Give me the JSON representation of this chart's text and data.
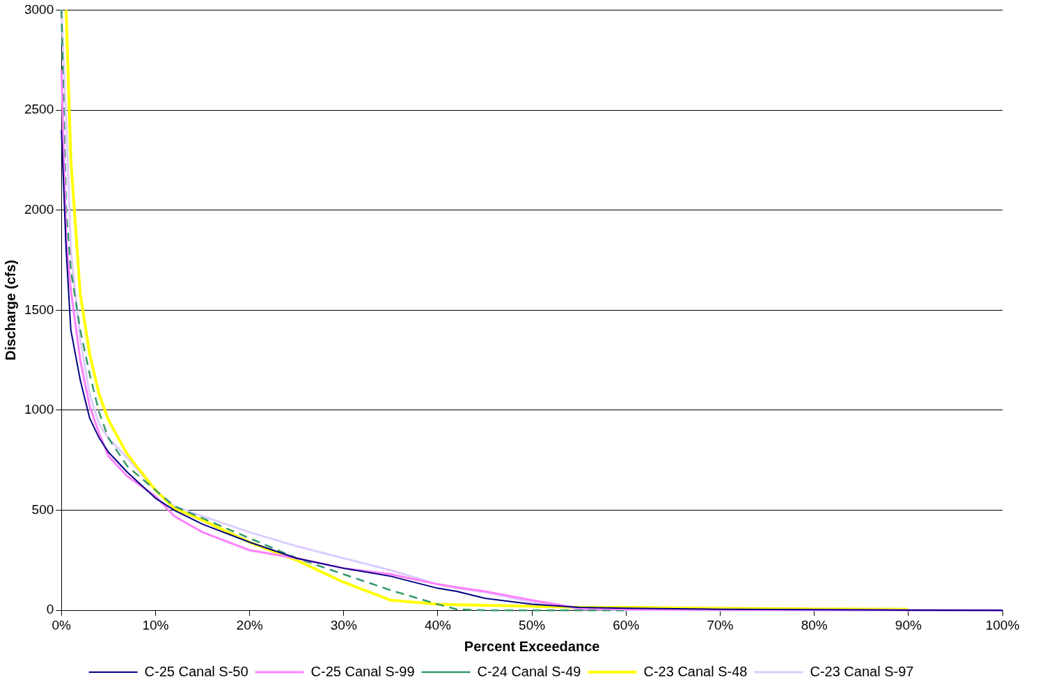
{
  "chart_data": {
    "type": "line",
    "xlabel": "Percent Exceedance",
    "ylabel": "Discharge (cfs)",
    "x": [
      0,
      0.5,
      1,
      2,
      3,
      4,
      5,
      7,
      10,
      12,
      15,
      20,
      25,
      30,
      35,
      40,
      42,
      45,
      50,
      55,
      60,
      70,
      80,
      90,
      100
    ],
    "xlim": [
      0,
      100
    ],
    "ylim": [
      0,
      3000
    ],
    "xticks": [
      {
        "value": 0,
        "label": "0%"
      },
      {
        "value": 10,
        "label": "10%"
      },
      {
        "value": 20,
        "label": "20%"
      },
      {
        "value": 30,
        "label": "30%"
      },
      {
        "value": 40,
        "label": "40%"
      },
      {
        "value": 50,
        "label": "50%"
      },
      {
        "value": 60,
        "label": "60%"
      },
      {
        "value": 70,
        "label": "70%"
      },
      {
        "value": 80,
        "label": "80%"
      },
      {
        "value": 90,
        "label": "90%"
      },
      {
        "value": 100,
        "label": "100%"
      }
    ],
    "yticks": [
      0,
      500,
      1000,
      1500,
      2000,
      2500,
      3000
    ],
    "grid": "y",
    "legend": "bottom",
    "marker": "none",
    "series": [
      {
        "name": "C-25 Canal S-50",
        "color": "#000080",
        "line_style": "solid",
        "values": [
          2400,
          1800,
          1400,
          1150,
          960,
          862,
          790,
          690,
          560,
          500,
          430,
          340,
          260,
          210,
          170,
          110,
          95,
          60,
          30,
          15,
          10,
          5,
          3,
          1,
          0
        ]
      },
      {
        "name": "C-25 Canal S-99",
        "color": "#ff80ff",
        "line_style": "solid",
        "values": [
          2700,
          1850,
          1600,
          1250,
          1020,
          885,
          770,
          670,
          570,
          470,
          390,
          300,
          260,
          210,
          180,
          130,
          115,
          95,
          50,
          10,
          5,
          3,
          2,
          1,
          0
        ]
      },
      {
        "name": "C-24 Canal S-49",
        "color": "#339966",
        "line_style": "dashed",
        "values": [
          3000,
          2000,
          1700,
          1400,
          1180,
          990,
          860,
          720,
          600,
          520,
          460,
          360,
          260,
          180,
          100,
          30,
          5,
          0,
          0,
          0,
          0,
          null,
          null,
          null,
          null
        ]
      },
      {
        "name": "C-23 Canal S-48",
        "color": "#ffff00",
        "line_style": "solid",
        "values": [
          null,
          3000,
          2250,
          1580,
          1280,
          1080,
          950,
          780,
          600,
          510,
          450,
          340,
          250,
          140,
          50,
          30,
          28,
          25,
          20,
          15,
          15,
          10,
          7,
          5,
          null
        ]
      },
      {
        "name": "C-23 Canal S-97",
        "color": "#ddccff",
        "line_style": "solid",
        "values": [
          3000,
          2450,
          1800,
          1350,
          1080,
          930,
          860,
          760,
          600,
          520,
          470,
          390,
          320,
          260,
          200,
          130,
          110,
          90,
          40,
          5,
          2,
          0,
          0,
          0,
          0
        ]
      }
    ]
  }
}
